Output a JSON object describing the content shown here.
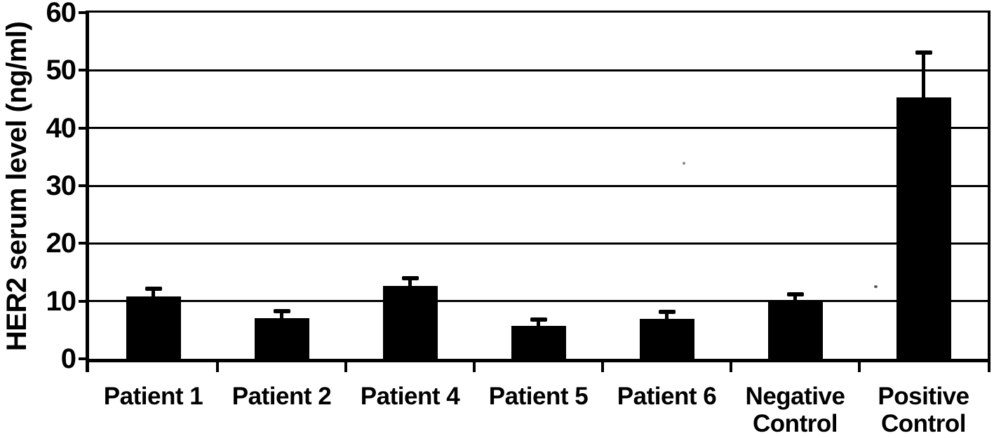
{
  "figure": {
    "background_color": "#ffffff",
    "ink_color": "#000000",
    "style_note": "black-and-white scanned journal figure"
  },
  "chart_data": {
    "type": "bar",
    "title": "",
    "xlabel": "",
    "ylabel": "HER2 serum level (ng/ml)",
    "ylim": [
      0,
      60
    ],
    "yticks": [
      0,
      10,
      20,
      30,
      40,
      50,
      60
    ],
    "grid": "horizontal gridlines at every y tick, full plot box border",
    "legend": "none",
    "bar_color": "#000000",
    "error_bar_style": "upper error bars with caps",
    "categories": [
      "Patient 1",
      "Patient 2",
      "Patient 4",
      "Patient 5",
      "Patient 6",
      "Negative Control",
      "Positive Control"
    ],
    "values": [
      10.8,
      7.1,
      12.6,
      5.7,
      6.9,
      10.0,
      45.3
    ],
    "errors_plus": [
      1.4,
      1.3,
      1.4,
      1.2,
      1.3,
      1.3,
      7.9
    ]
  }
}
